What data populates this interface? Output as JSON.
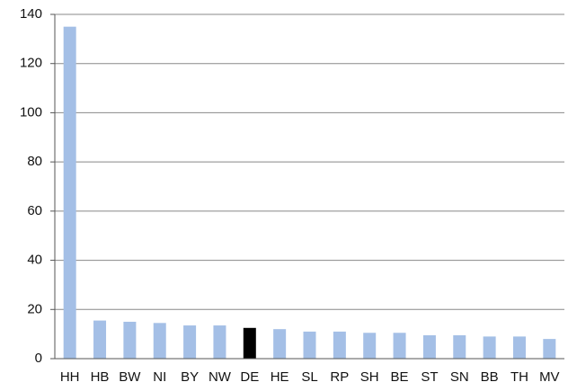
{
  "chart_data": {
    "type": "bar",
    "categories": [
      "HH",
      "HB",
      "BW",
      "NI",
      "BY",
      "NW",
      "DE",
      "HE",
      "SL",
      "RP",
      "SH",
      "BE",
      "ST",
      "SN",
      "BB",
      "TH",
      "MV"
    ],
    "values": [
      135,
      15.5,
      15,
      14.5,
      13.5,
      13.5,
      12.5,
      12,
      11,
      11,
      10.5,
      10.5,
      9.5,
      9.5,
      9,
      9,
      8
    ],
    "colors": [
      "#a4bfe6",
      "#a4bfe6",
      "#a4bfe6",
      "#a4bfe6",
      "#a4bfe6",
      "#a4bfe6",
      "#000000",
      "#a4bfe6",
      "#a4bfe6",
      "#a4bfe6",
      "#a4bfe6",
      "#a4bfe6",
      "#a4bfe6",
      "#a4bfe6",
      "#a4bfe6",
      "#a4bfe6",
      "#a4bfe6"
    ],
    "ylim": [
      0,
      140
    ],
    "yticks": [
      0,
      20,
      40,
      60,
      80,
      100,
      120,
      140
    ],
    "grid": true
  }
}
